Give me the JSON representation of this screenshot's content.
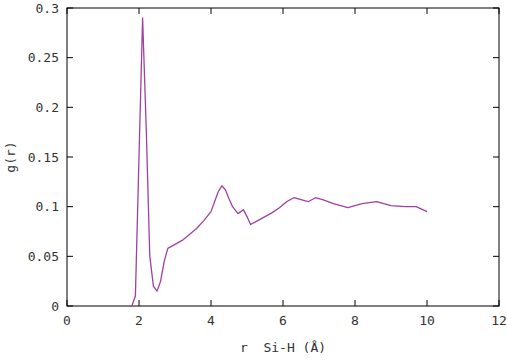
{
  "chart_data": {
    "type": "line",
    "x_label": "r  Si-H (Å)",
    "y_label": "g(r)",
    "x": [
      1.8,
      1.9,
      2.0,
      2.1,
      2.2,
      2.3,
      2.4,
      2.5,
      2.6,
      2.7,
      2.8,
      3.0,
      3.2,
      3.4,
      3.6,
      3.8,
      4.0,
      4.1,
      4.2,
      4.3,
      4.4,
      4.5,
      4.6,
      4.75,
      4.9,
      5.0,
      5.1,
      5.3,
      5.5,
      5.7,
      5.9,
      6.1,
      6.3,
      6.5,
      6.7,
      6.9,
      7.1,
      7.4,
      7.8,
      8.2,
      8.6,
      9.0,
      9.4,
      9.7,
      10.0
    ],
    "values": [
      0,
      0.01,
      0.15,
      0.29,
      0.18,
      0.05,
      0.02,
      0.015,
      0.025,
      0.045,
      0.058,
      0.062,
      0.066,
      0.072,
      0.078,
      0.086,
      0.095,
      0.105,
      0.115,
      0.121,
      0.117,
      0.108,
      0.1,
      0.093,
      0.097,
      0.09,
      0.082,
      0.086,
      0.09,
      0.094,
      0.099,
      0.105,
      0.109,
      0.107,
      0.105,
      0.109,
      0.107,
      0.103,
      0.099,
      0.103,
      0.105,
      0.101,
      0.1,
      0.1,
      0.095
    ],
    "color": "#a040a0",
    "xlim": [
      0,
      12
    ],
    "xticks": [
      0,
      2,
      4,
      6,
      8,
      10,
      12
    ],
    "ylim": [
      0,
      0.3
    ],
    "yticks": [
      0,
      0.05,
      0.1,
      0.15,
      0.2,
      0.25,
      0.3
    ],
    "grid": false
  }
}
